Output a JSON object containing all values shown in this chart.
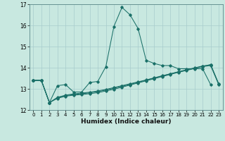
{
  "xlabel": "Humidex (Indice chaleur)",
  "xlim": [
    -0.5,
    23.5
  ],
  "ylim": [
    12,
    17
  ],
  "yticks": [
    12,
    13,
    14,
    15,
    16,
    17
  ],
  "xticks": [
    0,
    1,
    2,
    3,
    4,
    5,
    6,
    7,
    8,
    9,
    10,
    11,
    12,
    13,
    14,
    15,
    16,
    17,
    18,
    19,
    20,
    21,
    22,
    23
  ],
  "background_color": "#c8e8e0",
  "grid_color": "#a8cccc",
  "line_color": "#1a7068",
  "line1_x": [
    0,
    1,
    2,
    3,
    4,
    5,
    6,
    7,
    8,
    9,
    10,
    11,
    12,
    13,
    14,
    15,
    16,
    17,
    18,
    19,
    20,
    21,
    22
  ],
  "line1_y": [
    13.4,
    13.4,
    12.35,
    13.15,
    13.2,
    12.85,
    12.85,
    13.3,
    13.35,
    14.05,
    15.95,
    16.85,
    16.5,
    15.85,
    14.35,
    14.2,
    14.1,
    14.1,
    13.95,
    13.95,
    13.95,
    13.95,
    13.2
  ],
  "line2_x": [
    0,
    1,
    2,
    3,
    4,
    5,
    6,
    7,
    8,
    9,
    10,
    11,
    12,
    13,
    14,
    15,
    16,
    17,
    18,
    19,
    20,
    21,
    22,
    23
  ],
  "line2_y": [
    13.4,
    13.4,
    12.35,
    12.55,
    12.65,
    12.7,
    12.73,
    12.77,
    12.82,
    12.9,
    12.98,
    13.08,
    13.18,
    13.28,
    13.38,
    13.48,
    13.58,
    13.68,
    13.78,
    13.87,
    13.96,
    14.05,
    14.1,
    13.2
  ],
  "line3_x": [
    0,
    1,
    2,
    3,
    4,
    5,
    6,
    7,
    8,
    9,
    10,
    11,
    12,
    13,
    14,
    15,
    16,
    17,
    18,
    19,
    20,
    21,
    22,
    23
  ],
  "line3_y": [
    13.4,
    13.4,
    12.35,
    12.58,
    12.68,
    12.73,
    12.77,
    12.81,
    12.87,
    12.94,
    13.03,
    13.12,
    13.21,
    13.31,
    13.41,
    13.51,
    13.61,
    13.71,
    13.81,
    13.9,
    13.99,
    14.08,
    14.13,
    13.22
  ],
  "line4_x": [
    0,
    1,
    2,
    3,
    4,
    5,
    6,
    7,
    8,
    9,
    10,
    11,
    12,
    13,
    14,
    15,
    16,
    17,
    18,
    19,
    20,
    21,
    22,
    23
  ],
  "line4_y": [
    13.4,
    13.4,
    12.35,
    12.6,
    12.7,
    12.76,
    12.8,
    12.84,
    12.9,
    12.97,
    13.06,
    13.15,
    13.24,
    13.33,
    13.42,
    13.52,
    13.62,
    13.71,
    13.8,
    13.89,
    13.98,
    14.06,
    14.15,
    13.24
  ]
}
